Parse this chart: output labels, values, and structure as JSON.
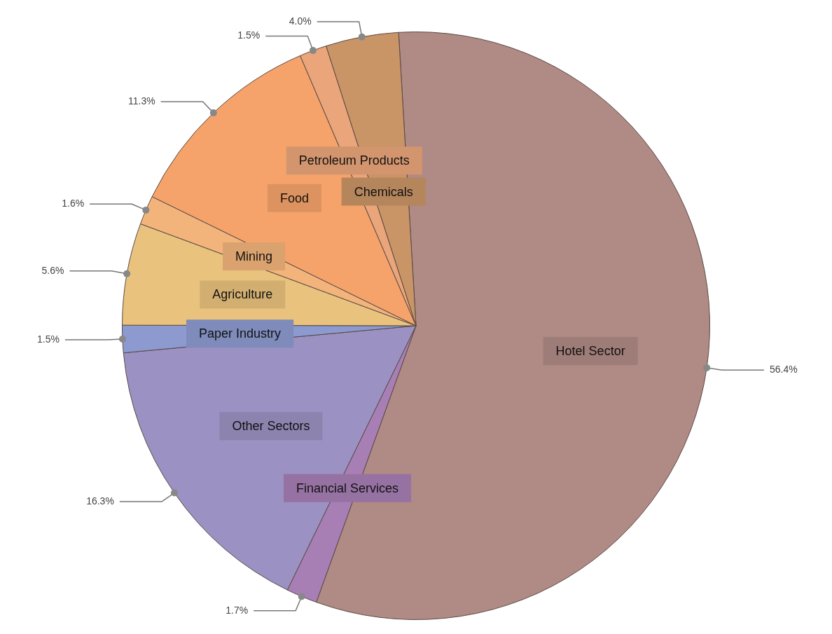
{
  "chart_data": {
    "type": "pie",
    "categories": [
      "Hotel Sector",
      "Financial Services",
      "Other Sectors",
      "Paper Industry",
      "Agriculture",
      "Mining",
      "Food",
      "Petroleum Products",
      "Chemicals"
    ],
    "values": [
      56.4,
      1.7,
      16.3,
      1.5,
      5.6,
      1.6,
      11.3,
      1.5,
      4.0
    ],
    "colors": [
      "#b08a84",
      "#a77fb5",
      "#9b91c2",
      "#8c9ad0",
      "#e9c27e",
      "#f2b47a",
      "#f5a36a",
      "#eaa57a",
      "#c99466"
    ],
    "value_labels": [
      "56.4%",
      "1.7%",
      "16.3%",
      "1.5%",
      "5.6%",
      "1.6%",
      "11.3%",
      "1.5%",
      "4.0%"
    ],
    "legend": false
  }
}
